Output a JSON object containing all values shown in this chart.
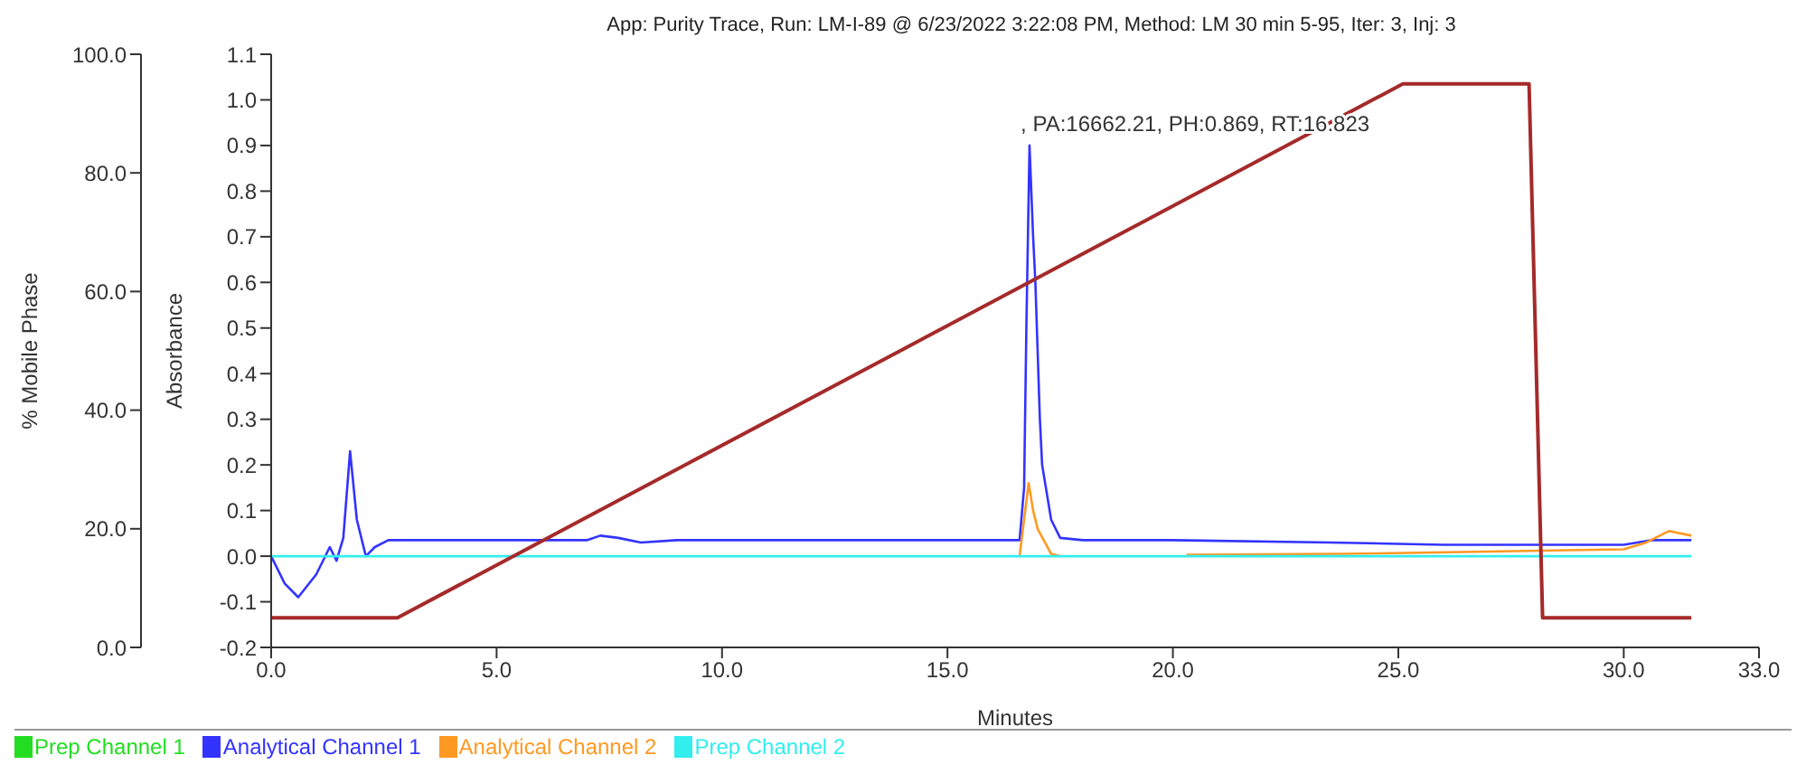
{
  "chart_data": {
    "type": "line",
    "title": "App: Purity Trace, Run: LM-I-89 @ 6/23/2022 3:22:08 PM, Method: LM 30 min 5-95, Iter: 3, Inj: 3",
    "xlabel": "Minutes",
    "ylabel": "Absorbance",
    "y2label": "% Mobile Phase",
    "xlim": [
      0,
      33
    ],
    "xticks": [
      {
        "value": 0,
        "label": "0.0"
      },
      {
        "value": 5,
        "label": "5.0"
      },
      {
        "value": 10,
        "label": "10.0"
      },
      {
        "value": 15,
        "label": "15.0"
      },
      {
        "value": 20,
        "label": "20.0"
      },
      {
        "value": 25,
        "label": "25.0"
      },
      {
        "value": 30,
        "label": "30.0"
      },
      {
        "value": 33,
        "label": "33.0"
      }
    ],
    "ylim": [
      -0.2,
      1.1
    ],
    "yticks": [
      -0.2,
      -0.1,
      {
        "value": 0,
        "label": "0.0"
      },
      0.1,
      0.2,
      0.3,
      0.4,
      0.5,
      0.6,
      0.7,
      0.8,
      0.9,
      {
        "value": 1,
        "label": "1.0"
      },
      1.1
    ],
    "y2lim": [
      0,
      100
    ],
    "y2ticks": [
      {
        "value": 0,
        "label": "0.0"
      },
      {
        "value": 20,
        "label": "20.0"
      },
      {
        "value": 40,
        "label": "40.0"
      },
      {
        "value": 60,
        "label": "60.0"
      },
      {
        "value": 80,
        "label": "80.0"
      },
      {
        "value": 100,
        "label": "100.0"
      }
    ],
    "legend": "bottom left",
    "series": [
      {
        "name": "Prep Channel 1",
        "color": "#22dd22"
      },
      {
        "name": "Analytical Channel 1",
        "color": "#3333ff",
        "x": [
          0,
          0.3,
          0.6,
          1.0,
          1.3,
          1.45,
          1.6,
          1.75,
          1.9,
          2.1,
          2.3,
          2.6,
          4,
          6,
          7,
          7.3,
          7.7,
          8.2,
          9,
          10,
          12,
          14,
          16.6,
          16.7,
          16.75,
          16.82,
          16.9,
          16.95,
          17.05,
          17.1,
          17.3,
          17.5,
          18,
          20,
          23.5,
          26,
          28,
          30,
          30.6,
          31.5
        ],
        "values": [
          0,
          -0.06,
          -0.09,
          -0.04,
          0.02,
          -0.01,
          0.04,
          0.23,
          0.08,
          0,
          0.02,
          0.035,
          0.035,
          0.035,
          0.035,
          0.045,
          0.04,
          0.03,
          0.035,
          0.035,
          0.035,
          0.035,
          0.035,
          0.15,
          0.5,
          0.9,
          0.7,
          0.6,
          0.3,
          0.2,
          0.08,
          0.04,
          0.035,
          0.035,
          0.03,
          0.025,
          0.025,
          0.025,
          0.035,
          0.035
        ]
      },
      {
        "name": "Analytical Channel 2",
        "color": "#ff9922",
        "x": [
          16.6,
          16.7,
          16.8,
          16.9,
          17.0,
          17.3,
          17.5,
          18,
          20.3,
          23.8,
          27,
          30,
          30.5,
          31,
          31.5
        ],
        "values": [
          0,
          0.08,
          0.16,
          0.1,
          0.06,
          0.005,
          0,
          null,
          0.003,
          0.005,
          0.01,
          0.015,
          0.03,
          0.055,
          0.045
        ]
      },
      {
        "name": "Prep Channel 2",
        "color": "#33eeee",
        "x": [
          0,
          31.5
        ],
        "values": [
          0,
          0
        ]
      },
      {
        "color": "#a52a2a",
        "axis": "y2",
        "x": [
          0,
          2.8,
          25.1,
          27.9,
          28.2,
          31.5
        ],
        "values": [
          5,
          5,
          95,
          95,
          5,
          5
        ]
      }
    ],
    "annotations": [
      {
        "text": ", PA:16662.21, PH:0.869, RT:16.823",
        "x": 16.823,
        "y": 0.869
      }
    ]
  }
}
